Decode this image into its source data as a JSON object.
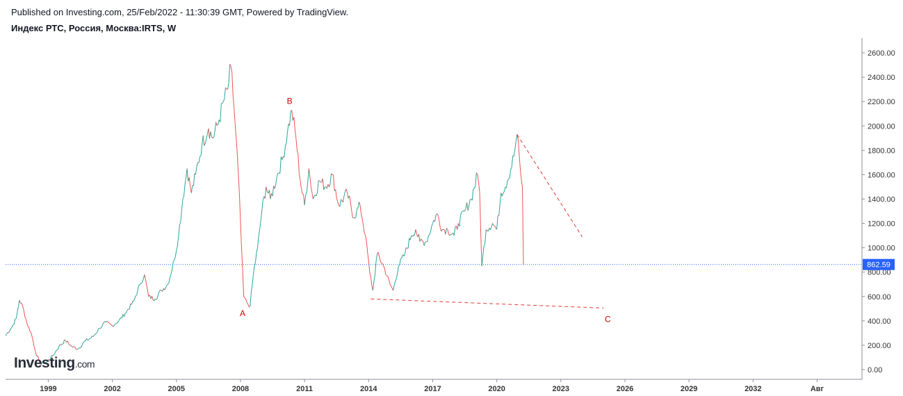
{
  "header": {
    "published": "Published on Investing.com, 25/Feb/2022 - 11:30:39 GMT, Powered by TradingView.",
    "symbol": "Индекс РТС, Россия, Москва:IRTS, W"
  },
  "logo": {
    "name": "Investing",
    "suffix": ".com"
  },
  "chart_data": {
    "type": "candlestick-line",
    "ylim": [
      -80,
      2720
    ],
    "xlim": [
      1997.9,
      2038.0
    ],
    "y_ticks": [
      "0.00",
      "200.00",
      "400.00",
      "600.00",
      "800.00",
      "1000.00",
      "1200.00",
      "1400.00",
      "1600.00",
      "1800.00",
      "2000.00",
      "2200.00",
      "2400.00",
      "2600.00"
    ],
    "x_ticks": [
      {
        "label": "1999",
        "x": 1999.9
      },
      {
        "label": "2002",
        "x": 2002.9
      },
      {
        "label": "2005",
        "x": 2005.9
      },
      {
        "label": "2008",
        "x": 2008.9
      },
      {
        "label": "2011",
        "x": 2011.9
      },
      {
        "label": "2014",
        "x": 2014.9
      },
      {
        "label": "2017",
        "x": 2017.9
      },
      {
        "label": "2020",
        "x": 2020.9
      },
      {
        "label": "2023",
        "x": 2023.9
      },
      {
        "label": "2026",
        "x": 2026.9
      },
      {
        "label": "2029",
        "x": 2029.9
      },
      {
        "label": "2032",
        "x": 2032.9
      },
      {
        "label": "Авг",
        "x": 2035.9
      }
    ],
    "last_price": {
      "label": "862.59",
      "value": 862.59
    },
    "price_path": [
      [
        1997.9,
        280
      ],
      [
        1998.2,
        350
      ],
      [
        1998.4,
        420
      ],
      [
        1998.55,
        570
      ],
      [
        1998.7,
        520
      ],
      [
        1998.9,
        380
      ],
      [
        1999.1,
        300
      ],
      [
        1999.3,
        150
      ],
      [
        1999.5,
        50
      ],
      [
        1999.8,
        60
      ],
      [
        2000.1,
        110
      ],
      [
        2000.4,
        190
      ],
      [
        2000.7,
        240
      ],
      [
        2001.0,
        190
      ],
      [
        2001.3,
        170
      ],
      [
        2001.6,
        230
      ],
      [
        2002.0,
        270
      ],
      [
        2002.3,
        340
      ],
      [
        2002.6,
        390
      ],
      [
        2002.9,
        360
      ],
      [
        2003.2,
        400
      ],
      [
        2003.5,
        460
      ],
      [
        2003.9,
        560
      ],
      [
        2004.2,
        700
      ],
      [
        2004.4,
        780
      ],
      [
        2004.6,
        600
      ],
      [
        2004.9,
        580
      ],
      [
        2005.2,
        650
      ],
      [
        2005.5,
        700
      ],
      [
        2005.8,
        900
      ],
      [
        2006.0,
        1100
      ],
      [
        2006.2,
        1400
      ],
      [
        2006.4,
        1650
      ],
      [
        2006.6,
        1450
      ],
      [
        2006.8,
        1600
      ],
      [
        2007.1,
        1850
      ],
      [
        2007.4,
        1980
      ],
      [
        2007.6,
        1900
      ],
      [
        2007.9,
        2050
      ],
      [
        2008.1,
        2200
      ],
      [
        2008.3,
        2300
      ],
      [
        2008.45,
        2490
      ],
      [
        2008.6,
        2150
      ],
      [
        2008.8,
        1600
      ],
      [
        2008.95,
        1000
      ],
      [
        2009.05,
        600
      ],
      [
        2009.2,
        550
      ],
      [
        2009.35,
        520
      ],
      [
        2009.5,
        780
      ],
      [
        2009.7,
        1000
      ],
      [
        2009.9,
        1300
      ],
      [
        2010.1,
        1500
      ],
      [
        2010.3,
        1400
      ],
      [
        2010.6,
        1580
      ],
      [
        2010.9,
        1750
      ],
      [
        2011.1,
        1950
      ],
      [
        2011.3,
        2130
      ],
      [
        2011.5,
        1900
      ],
      [
        2011.7,
        1550
      ],
      [
        2011.9,
        1350
      ],
      [
        2012.1,
        1650
      ],
      [
        2012.3,
        1400
      ],
      [
        2012.6,
        1550
      ],
      [
        2012.9,
        1500
      ],
      [
        2013.2,
        1600
      ],
      [
        2013.5,
        1350
      ],
      [
        2013.9,
        1450
      ],
      [
        2014.2,
        1250
      ],
      [
        2014.5,
        1350
      ],
      [
        2014.75,
        1100
      ],
      [
        2014.95,
        800
      ],
      [
        2015.1,
        650
      ],
      [
        2015.3,
        950
      ],
      [
        2015.6,
        850
      ],
      [
        2015.9,
        700
      ],
      [
        2016.05,
        650
      ],
      [
        2016.3,
        850
      ],
      [
        2016.6,
        950
      ],
      [
        2016.9,
        1100
      ],
      [
        2017.1,
        1150
      ],
      [
        2017.3,
        1050
      ],
      [
        2017.6,
        1050
      ],
      [
        2017.9,
        1200
      ],
      [
        2018.1,
        1280
      ],
      [
        2018.35,
        1150
      ],
      [
        2018.6,
        1150
      ],
      [
        2018.9,
        1100
      ],
      [
        2019.1,
        1200
      ],
      [
        2019.4,
        1300
      ],
      [
        2019.7,
        1400
      ],
      [
        2020.0,
        1600
      ],
      [
        2020.1,
        1450
      ],
      [
        2020.2,
        850
      ],
      [
        2020.4,
        1150
      ],
      [
        2020.7,
        1200
      ],
      [
        2020.9,
        1150
      ],
      [
        2021.1,
        1450
      ],
      [
        2021.4,
        1550
      ],
      [
        2021.7,
        1750
      ],
      [
        2021.85,
        1930
      ],
      [
        2022.0,
        1650
      ],
      [
        2022.1,
        1500
      ],
      [
        2022.15,
        862.59
      ]
    ],
    "wave_labels": [
      {
        "label": "A",
        "x": 2009.0,
        "y": 440
      },
      {
        "label": "B",
        "x": 2011.2,
        "y": 2180
      },
      {
        "label": "C",
        "x": 2026.1,
        "y": 390
      }
    ],
    "trend_lines": [
      {
        "from": [
          2015.0,
          580
        ],
        "to": [
          2025.9,
          505
        ]
      },
      {
        "from": [
          2021.85,
          1930
        ],
        "to": [
          2024.9,
          1090
        ]
      }
    ]
  }
}
